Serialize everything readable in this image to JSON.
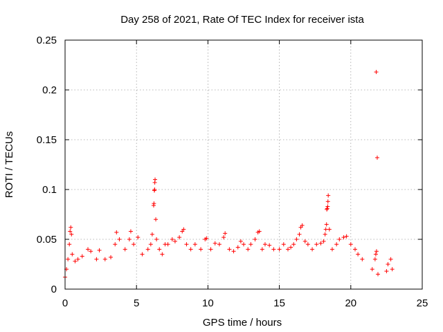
{
  "chart_data": {
    "type": "scatter",
    "title": "Day 258 of 2021, Rate Of TEC Index for receiver ista",
    "xlabel": "GPS time / hours",
    "ylabel": "ROTI / TECUs",
    "xlim": [
      0,
      25
    ],
    "ylim": [
      0,
      0.25
    ],
    "xticks": [
      0,
      5,
      10,
      15,
      20,
      25
    ],
    "xtick_labels": [
      "0",
      "5",
      "10",
      "15",
      "20",
      "25"
    ],
    "yticks": [
      0,
      0.05,
      0.1,
      0.15,
      0.2,
      0.25
    ],
    "ytick_labels": [
      "0",
      "0.05",
      "0.1",
      "0.15",
      "0.2",
      "0.25"
    ],
    "grid": true,
    "marker": "+",
    "color": "#ff0000",
    "series": [
      {
        "name": "ROTI",
        "points": [
          [
            0.0,
            0.012
          ],
          [
            0.1,
            0.02
          ],
          [
            0.2,
            0.03
          ],
          [
            0.3,
            0.045
          ],
          [
            0.35,
            0.058
          ],
          [
            0.4,
            0.062
          ],
          [
            0.45,
            0.055
          ],
          [
            0.5,
            0.035
          ],
          [
            0.7,
            0.028
          ],
          [
            0.9,
            0.03
          ],
          [
            1.2,
            0.033
          ],
          [
            1.6,
            0.04
          ],
          [
            1.8,
            0.038
          ],
          [
            2.2,
            0.03
          ],
          [
            2.4,
            0.039
          ],
          [
            2.8,
            0.03
          ],
          [
            3.2,
            0.032
          ],
          [
            3.5,
            0.045
          ],
          [
            3.6,
            0.057
          ],
          [
            3.8,
            0.05
          ],
          [
            4.2,
            0.04
          ],
          [
            4.5,
            0.05
          ],
          [
            4.6,
            0.058
          ],
          [
            4.8,
            0.045
          ],
          [
            5.1,
            0.052
          ],
          [
            5.4,
            0.035
          ],
          [
            5.8,
            0.04
          ],
          [
            6.0,
            0.045
          ],
          [
            6.1,
            0.055
          ],
          [
            6.2,
            0.084
          ],
          [
            6.22,
            0.086
          ],
          [
            6.25,
            0.099
          ],
          [
            6.27,
            0.1
          ],
          [
            6.28,
            0.107
          ],
          [
            6.3,
            0.11
          ],
          [
            6.35,
            0.07
          ],
          [
            6.4,
            0.05
          ],
          [
            6.6,
            0.04
          ],
          [
            6.8,
            0.035
          ],
          [
            7.0,
            0.045
          ],
          [
            7.2,
            0.045
          ],
          [
            7.5,
            0.05
          ],
          [
            7.7,
            0.048
          ],
          [
            8.0,
            0.052
          ],
          [
            8.2,
            0.058
          ],
          [
            8.3,
            0.06
          ],
          [
            8.5,
            0.045
          ],
          [
            8.8,
            0.04
          ],
          [
            9.1,
            0.045
          ],
          [
            9.5,
            0.04
          ],
          [
            9.8,
            0.05
          ],
          [
            9.9,
            0.051
          ],
          [
            10.2,
            0.04
          ],
          [
            10.5,
            0.046
          ],
          [
            10.8,
            0.045
          ],
          [
            11.1,
            0.052
          ],
          [
            11.2,
            0.056
          ],
          [
            11.5,
            0.04
          ],
          [
            11.8,
            0.038
          ],
          [
            12.1,
            0.042
          ],
          [
            12.3,
            0.048
          ],
          [
            12.5,
            0.045
          ],
          [
            12.8,
            0.04
          ],
          [
            13.0,
            0.045
          ],
          [
            13.3,
            0.05
          ],
          [
            13.5,
            0.057
          ],
          [
            13.6,
            0.058
          ],
          [
            13.8,
            0.04
          ],
          [
            14.0,
            0.045
          ],
          [
            14.3,
            0.044
          ],
          [
            14.6,
            0.04
          ],
          [
            15.0,
            0.04
          ],
          [
            15.3,
            0.045
          ],
          [
            15.6,
            0.04
          ],
          [
            15.8,
            0.042
          ],
          [
            16.0,
            0.045
          ],
          [
            16.2,
            0.05
          ],
          [
            16.4,
            0.055
          ],
          [
            16.5,
            0.062
          ],
          [
            16.6,
            0.064
          ],
          [
            16.8,
            0.048
          ],
          [
            17.0,
            0.045
          ],
          [
            17.3,
            0.04
          ],
          [
            17.6,
            0.045
          ],
          [
            17.9,
            0.046
          ],
          [
            18.1,
            0.048
          ],
          [
            18.2,
            0.055
          ],
          [
            18.25,
            0.06
          ],
          [
            18.3,
            0.065
          ],
          [
            18.32,
            0.08
          ],
          [
            18.35,
            0.081
          ],
          [
            18.38,
            0.083
          ],
          [
            18.4,
            0.088
          ],
          [
            18.42,
            0.094
          ],
          [
            18.5,
            0.06
          ],
          [
            18.7,
            0.04
          ],
          [
            19.0,
            0.045
          ],
          [
            19.2,
            0.05
          ],
          [
            19.5,
            0.052
          ],
          [
            19.7,
            0.053
          ],
          [
            20.0,
            0.045
          ],
          [
            20.3,
            0.04
          ],
          [
            20.5,
            0.035
          ],
          [
            20.8,
            0.03
          ],
          [
            21.5,
            0.02
          ],
          [
            21.7,
            0.03
          ],
          [
            21.75,
            0.035
          ],
          [
            21.8,
            0.038
          ],
          [
            21.9,
            0.015
          ],
          [
            21.78,
            0.218
          ],
          [
            21.85,
            0.132
          ],
          [
            22.5,
            0.018
          ],
          [
            22.6,
            0.025
          ],
          [
            22.8,
            0.03
          ],
          [
            22.9,
            0.02
          ]
        ]
      }
    ]
  }
}
